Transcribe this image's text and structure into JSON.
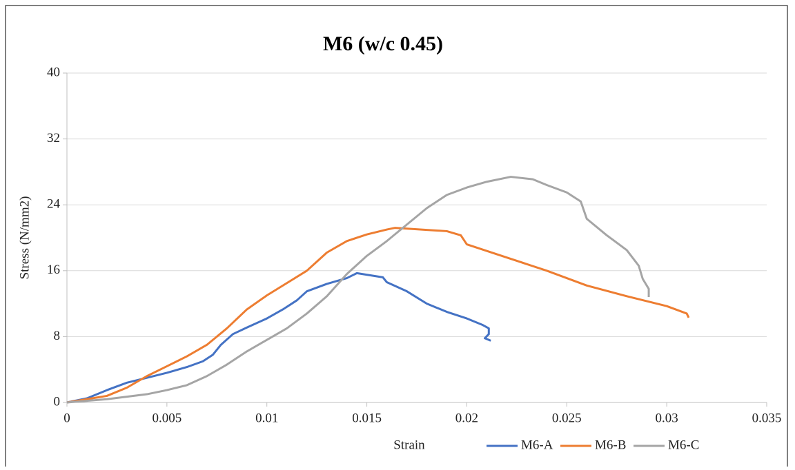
{
  "chart_data": {
    "type": "line",
    "title": "M6 (w/c 0.45)",
    "x_label": "Strain",
    "y_label": "Stress (N/mm2)",
    "xlim": [
      0,
      0.035
    ],
    "xticks": [
      0,
      0.005,
      0.01,
      0.015,
      0.02,
      0.025,
      0.03,
      0.035
    ],
    "ylim": [
      0,
      40
    ],
    "yticks": [
      0,
      8,
      16,
      24,
      32,
      40
    ],
    "grid": true,
    "legend": "bottom",
    "series": [
      {
        "name": "M6-A",
        "color": "#4472c4",
        "x": [
          0,
          0.001,
          0.002,
          0.003,
          0.004,
          0.005,
          0.006,
          0.0068,
          0.0073,
          0.0077,
          0.0083,
          0.009,
          0.01,
          0.0108,
          0.0115,
          0.012,
          0.013,
          0.014,
          0.0145,
          0.0158,
          0.016,
          0.017,
          0.018,
          0.019,
          0.02,
          0.0208,
          0.0211,
          0.0211,
          0.0209,
          0.0212
        ],
        "values": [
          0,
          0.5,
          1.5,
          2.4,
          3.0,
          3.6,
          4.3,
          5.0,
          5.8,
          7.0,
          8.3,
          9.1,
          10.2,
          11.3,
          12.4,
          13.5,
          14.4,
          15.1,
          15.7,
          15.2,
          14.6,
          13.5,
          12.0,
          11.0,
          10.2,
          9.4,
          9.0,
          8.3,
          7.8,
          7.5
        ]
      },
      {
        "name": "M6-B",
        "color": "#ed7d31",
        "x": [
          0,
          0.001,
          0.002,
          0.003,
          0.004,
          0.005,
          0.006,
          0.007,
          0.008,
          0.009,
          0.01,
          0.011,
          0.012,
          0.013,
          0.014,
          0.015,
          0.016,
          0.0164,
          0.019,
          0.0197,
          0.02,
          0.022,
          0.024,
          0.026,
          0.028,
          0.03,
          0.031,
          0.0311
        ],
        "values": [
          0,
          0.4,
          0.8,
          1.8,
          3.2,
          4.4,
          5.6,
          7.0,
          9.0,
          11.3,
          13.0,
          14.5,
          16.0,
          18.2,
          19.6,
          20.4,
          21.0,
          21.2,
          20.8,
          20.3,
          19.2,
          17.6,
          16.0,
          14.2,
          12.9,
          11.7,
          10.8,
          10.3
        ]
      },
      {
        "name": "M6-C",
        "color": "#a5a5a5",
        "x": [
          0,
          0.002,
          0.004,
          0.005,
          0.006,
          0.007,
          0.008,
          0.009,
          0.01,
          0.011,
          0.012,
          0.013,
          0.014,
          0.015,
          0.016,
          0.017,
          0.018,
          0.019,
          0.02,
          0.021,
          0.0222,
          0.0233,
          0.024,
          0.025,
          0.0257,
          0.026,
          0.027,
          0.028,
          0.0286,
          0.0288,
          0.0291,
          0.0291
        ],
        "values": [
          0,
          0.4,
          1.0,
          1.5,
          2.1,
          3.2,
          4.6,
          6.2,
          7.6,
          9.0,
          10.8,
          12.9,
          15.6,
          17.8,
          19.6,
          21.6,
          23.6,
          25.2,
          26.1,
          26.8,
          27.4,
          27.1,
          26.4,
          25.5,
          24.4,
          22.3,
          20.3,
          18.5,
          16.6,
          15.0,
          13.8,
          12.8
        ]
      }
    ]
  }
}
